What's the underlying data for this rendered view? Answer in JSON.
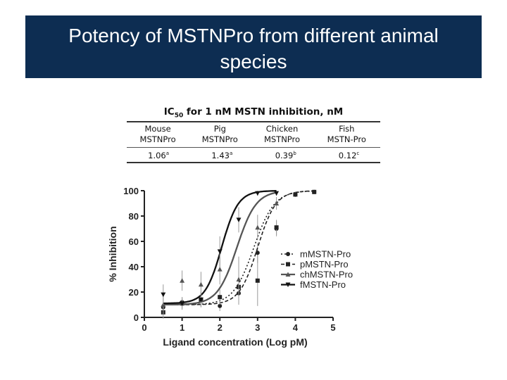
{
  "slide": {
    "title_line1": "Potency of MSTNPro from different animal",
    "title_line2": "species"
  },
  "ic50_table": {
    "caption_prefix": "IC",
    "caption_sub": "50",
    "caption_rest": " for 1 nM MSTN inhibition, nM",
    "columns": [
      {
        "line1": "Mouse",
        "line2": "MSTNPro",
        "value": "1.06",
        "sup": "a"
      },
      {
        "line1": "Pig",
        "line2": "MSTNPro",
        "value": "1.43",
        "sup": "a"
      },
      {
        "line1": "Chicken",
        "line2": "MSTNPro",
        "value": "0.39",
        "sup": "b"
      },
      {
        "line1": "Fish",
        "line2": "MSTN-Pro",
        "value": "0.12",
        "sup": "c"
      }
    ]
  },
  "chart_data": {
    "type": "scatter",
    "xlabel": "Ligand concentration (Log pM)",
    "ylabel": "% Inhibition",
    "xlim": [
      0,
      5
    ],
    "ylim": [
      0,
      100
    ],
    "xticks": [
      "0",
      "1",
      "2",
      "3",
      "4",
      "5"
    ],
    "yticks": [
      "0",
      "20",
      "40",
      "60",
      "80",
      "100"
    ],
    "legend_position": "right",
    "series": [
      {
        "name": "m",
        "label": "mMSTN-Pro",
        "marker": "circle",
        "dash": "2,3",
        "color": "#222222",
        "curve": {
          "bottom": 10,
          "top": 100,
          "ec50": 2.9,
          "hill": 1.6
        },
        "x": [
          0.5,
          1.0,
          1.5,
          2.0,
          2.5,
          3.0,
          3.5,
          4.0,
          4.5
        ],
        "y": [
          8,
          12,
          14,
          9,
          19,
          51,
          70,
          97,
          99
        ],
        "err": [
          4,
          4,
          5,
          4,
          6,
          8,
          6,
          2,
          1
        ]
      },
      {
        "name": "p",
        "label": "pMSTN-Pro",
        "marker": "square",
        "dash": "5,3",
        "color": "#222222",
        "curve": {
          "bottom": 10,
          "top": 100,
          "ec50": 3.0,
          "hill": 1.8
        },
        "x": [
          0.5,
          1.0,
          1.5,
          2.0,
          2.5,
          3.0,
          3.5,
          4.0,
          4.5
        ],
        "y": [
          4,
          11,
          14,
          16,
          24,
          29,
          71,
          97,
          99
        ],
        "err": [
          5,
          4,
          6,
          6,
          14,
          20,
          6,
          2,
          1
        ]
      },
      {
        "name": "ch",
        "label": "chMSTN-Pro",
        "marker": "triangle-up",
        "dash": "",
        "color": "#555555",
        "curve": {
          "bottom": 10,
          "top": 100,
          "ec50": 2.45,
          "hill": 1.7
        },
        "x": [
          0.5,
          1.0,
          1.5,
          2.0,
          2.5,
          3.0,
          3.5
        ],
        "y": [
          10,
          29,
          26,
          38,
          30,
          71,
          90
        ],
        "err": [
          8,
          8,
          10,
          12,
          18,
          10,
          5
        ]
      },
      {
        "name": "f",
        "label": "fMSTN-Pro",
        "marker": "triangle-down",
        "dash": "",
        "color": "#111111",
        "curve": {
          "bottom": 11,
          "top": 100,
          "ec50": 2.05,
          "hill": 2.0
        },
        "x": [
          0.5,
          1.0,
          1.5,
          2.0,
          2.5,
          3.0,
          3.5
        ],
        "y": [
          18,
          11,
          14,
          52,
          77,
          98,
          98
        ],
        "err": [
          8,
          5,
          6,
          12,
          10,
          2,
          2
        ]
      }
    ]
  }
}
